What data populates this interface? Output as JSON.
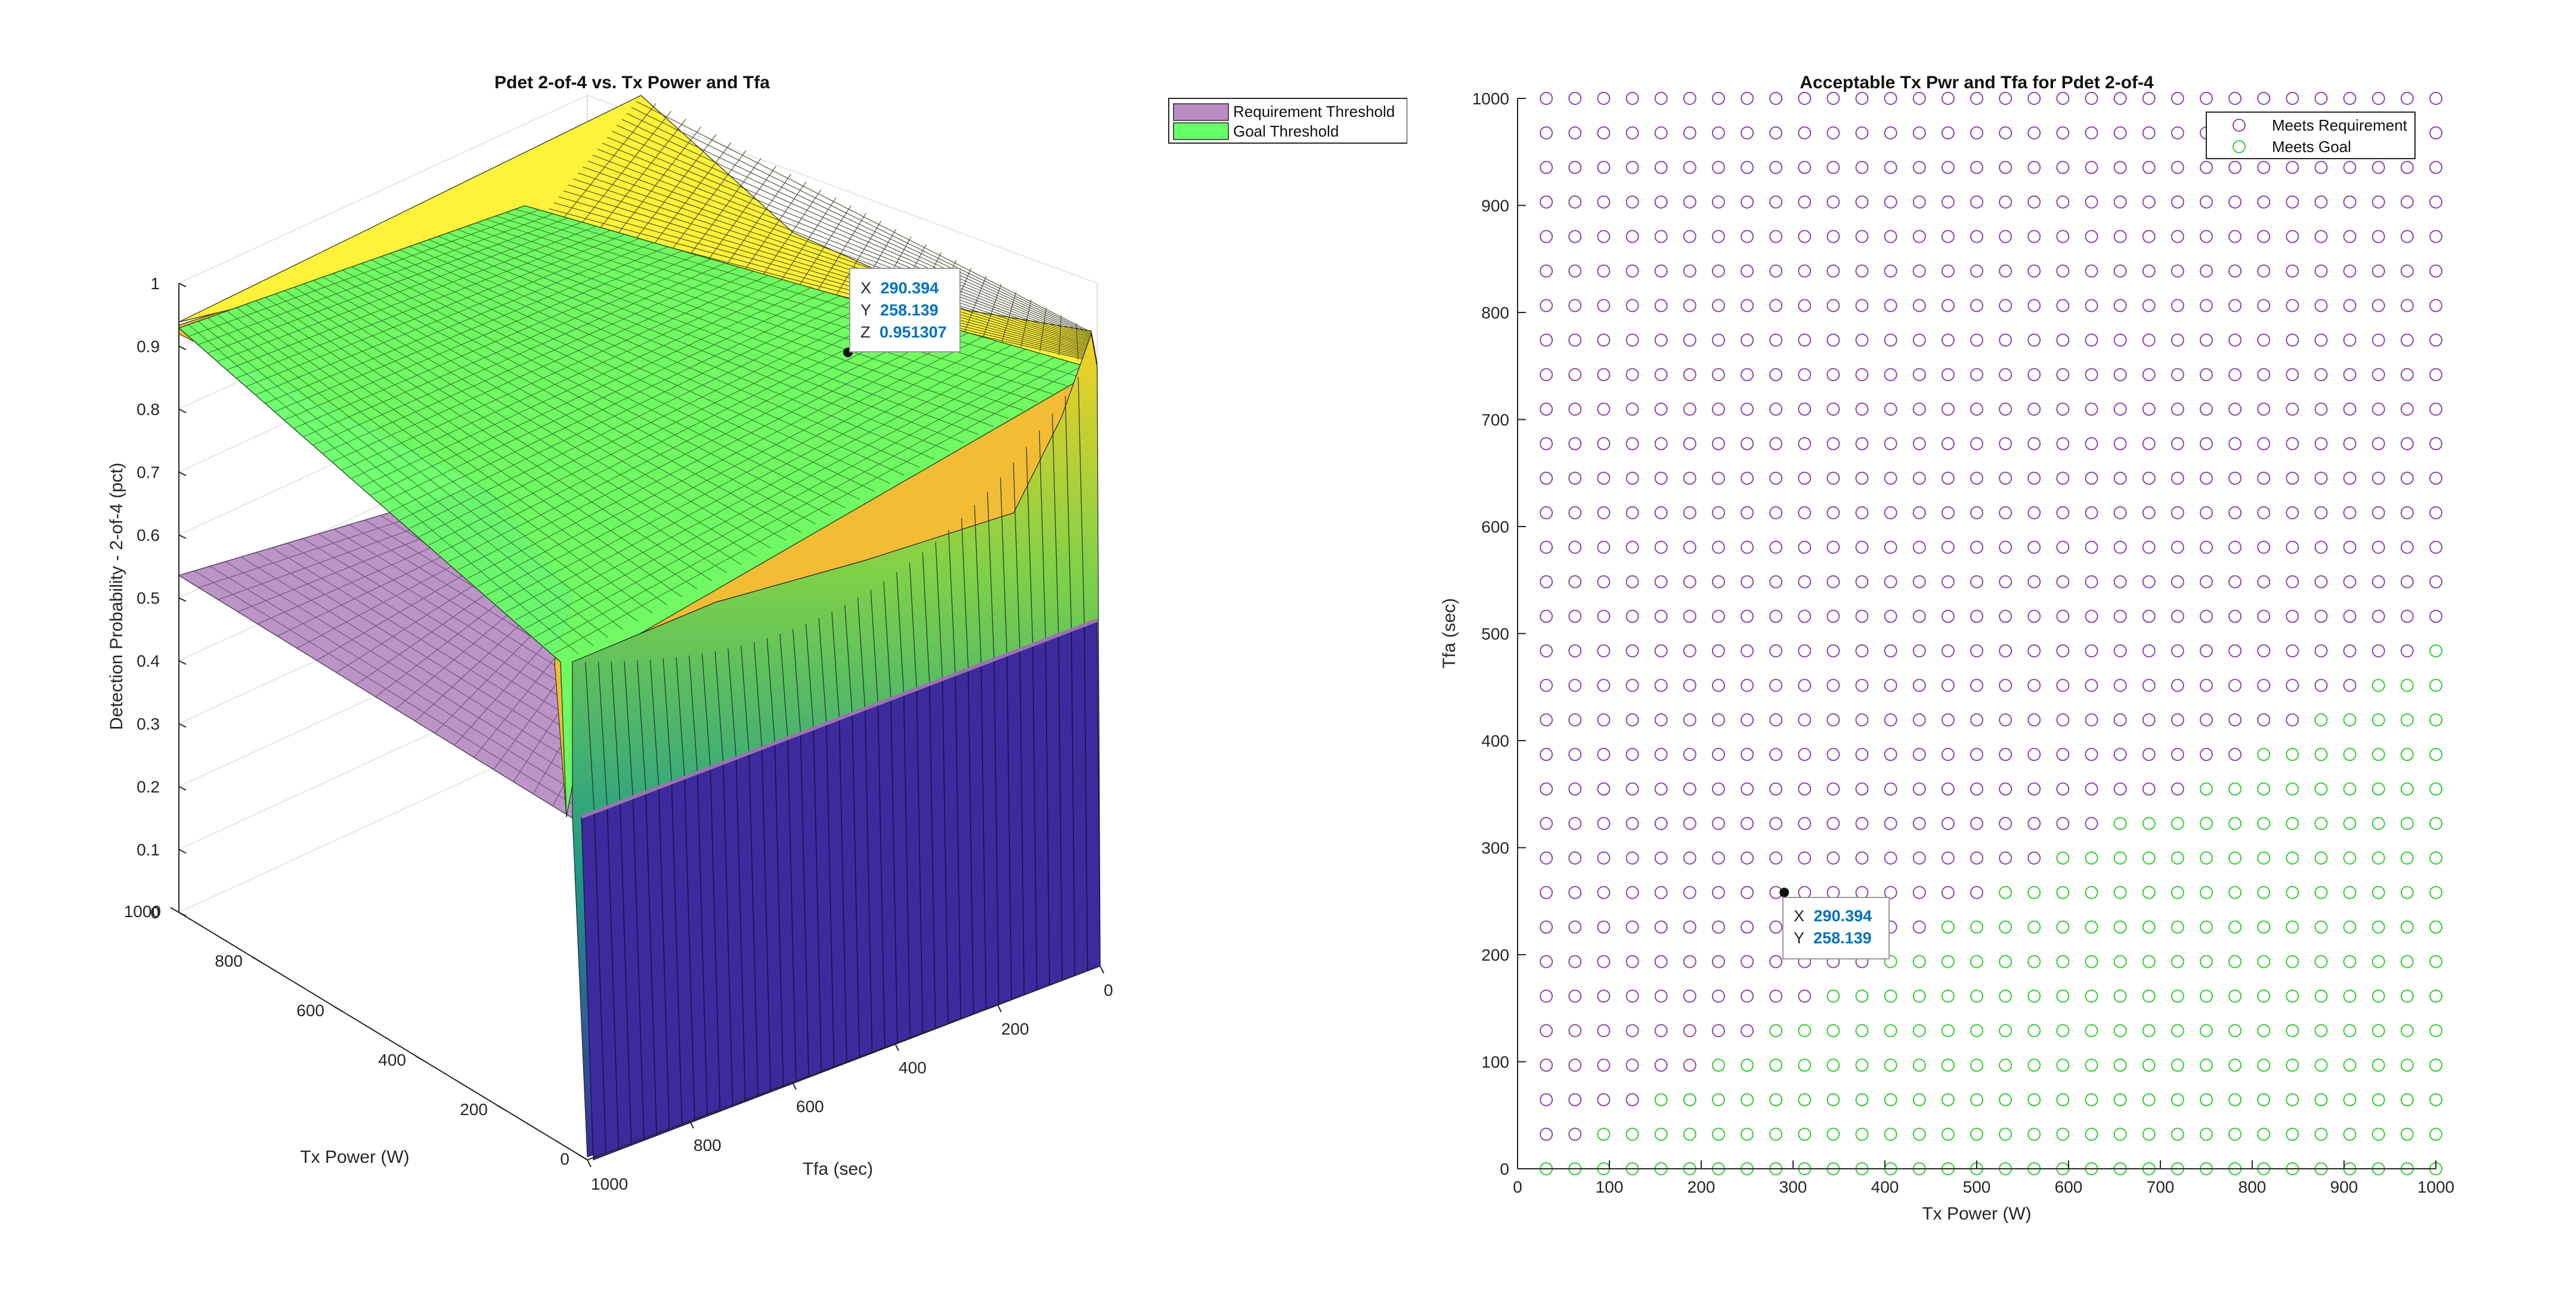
{
  "figure": {
    "left": {
      "title": "Pdet 2-of-4 vs. Tx Power and Tfa",
      "zlabel": "Detection Probability - 2-of-4 (pct)",
      "xlabel": "Tx Power (W)",
      "ylabel": "Tfa (sec)",
      "z_ticks": [
        "0",
        "0.1",
        "0.2",
        "0.3",
        "0.4",
        "0.5",
        "0.6",
        "0.7",
        "0.8",
        "0.9",
        "1"
      ],
      "x_ticks": [
        "0",
        "200",
        "400",
        "600",
        "800",
        "1000"
      ],
      "y_ticks": [
        "0",
        "200",
        "400",
        "600",
        "800",
        "1000"
      ],
      "legend": [
        {
          "label": "Requirement Threshold",
          "color": "#b98fc3"
        },
        {
          "label": "Goal Threshold",
          "color": "#66ff66"
        }
      ],
      "datatip": {
        "x_label": "X",
        "x_value": "290.394",
        "y_label": "Y",
        "y_value": "258.139",
        "z_label": "Z",
        "z_value": "0.951307"
      }
    },
    "right": {
      "title": "Acceptable Tx Pwr and Tfa for Pdet 2-of-4",
      "xlabel": "Tx Power (W)",
      "ylabel": "Tfa (sec)",
      "x_ticks": [
        "0",
        "100",
        "200",
        "300",
        "400",
        "500",
        "600",
        "700",
        "800",
        "900",
        "1000"
      ],
      "y_ticks": [
        "0",
        "100",
        "200",
        "300",
        "400",
        "500",
        "600",
        "700",
        "800",
        "900",
        "1000"
      ],
      "legend": [
        {
          "label": "Meets Requirement",
          "color": "#8e44ad"
        },
        {
          "label": "Meets Goal",
          "color": "#33cc33"
        }
      ],
      "datatip": {
        "x_label": "X",
        "x_value": "290.394",
        "y_label": "Y",
        "y_value": "258.139"
      }
    }
  },
  "chart_data": [
    {
      "type": "surface",
      "title": "Pdet 2-of-4 vs. Tx Power and Tfa",
      "xlabel": "Tx Power (W)",
      "ylabel": "Tfa (sec)",
      "zlabel": "Detection Probability - 2-of-4 (pct)",
      "xlim": [
        0,
        1000
      ],
      "ylim": [
        0,
        1000
      ],
      "zlim": [
        0,
        1
      ],
      "grid": true,
      "legend_position": "top-right",
      "planes": [
        {
          "name": "Requirement Threshold",
          "z": 0.5,
          "color": "#b98fc3"
        },
        {
          "name": "Goal Threshold",
          "z": 0.9,
          "color": "#66ff66"
        }
      ],
      "surface_samples": [
        {
          "x": 0,
          "y": 0,
          "z": 1.0
        },
        {
          "x": 0,
          "y": 1000,
          "z": 0.0
        },
        {
          "x": 1000,
          "y": 0,
          "z": 1.0
        },
        {
          "x": 1000,
          "y": 1000,
          "z": 0.87
        },
        {
          "x": 290.394,
          "y": 258.139,
          "z": 0.951307
        }
      ],
      "datatip": {
        "x": 290.394,
        "y": 258.139,
        "z": 0.951307
      }
    },
    {
      "type": "scatter",
      "title": "Acceptable Tx Pwr and Tfa for Pdet 2-of-4",
      "xlabel": "Tx Power (W)",
      "ylabel": "Tfa (sec)",
      "xlim": [
        0,
        1000
      ],
      "ylim": [
        0,
        1000
      ],
      "grid": false,
      "legend_position": "top-right",
      "x_grid_values": {
        "start": 31.25,
        "step": 31.25,
        "count": 32
      },
      "y_grid_values": {
        "start": 0,
        "step": 32.258,
        "count": 32
      },
      "series": [
        {
          "name": "Meets Requirement",
          "marker": "circle",
          "color": "#8e44ad",
          "rule": "all grid points"
        },
        {
          "name": "Meets Goal",
          "marker": "circle",
          "color": "#33cc33",
          "rule": "Tfa <= 0.5 * Tx Power (approx.)"
        }
      ],
      "datatip": {
        "x": 290.394,
        "y": 258.139
      }
    }
  ]
}
